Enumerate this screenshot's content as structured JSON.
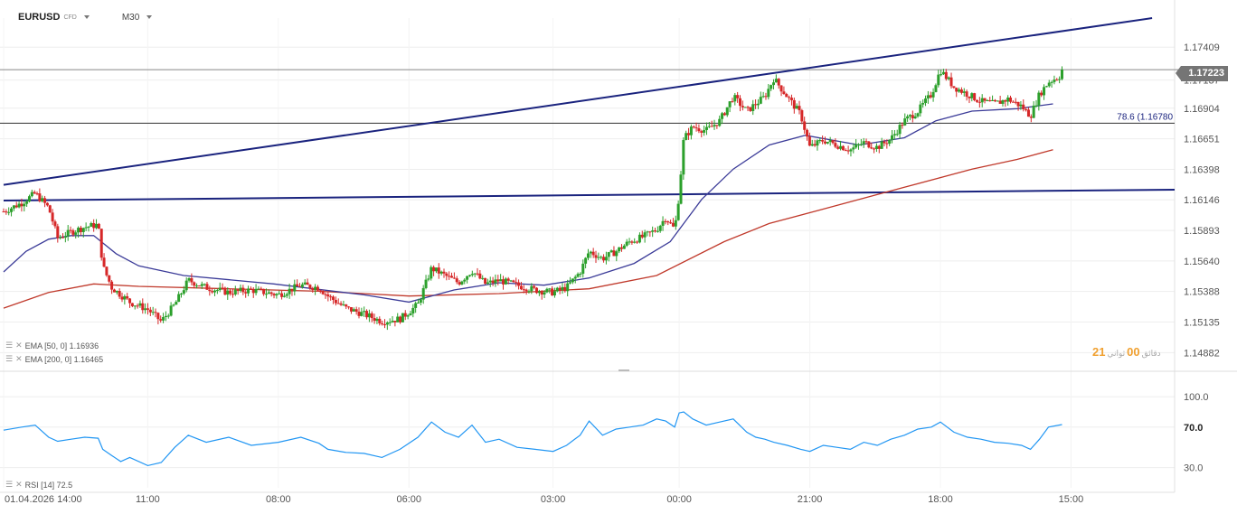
{
  "toolbar": {
    "symbol": "EURUSD",
    "instrument_type": "CFD",
    "timeframe": "M30"
  },
  "indicators": {
    "ema50": "EMA [50, 0] 1.16936",
    "ema200": "EMA [200, 0] 1.16465",
    "rsi": "RSI [14] 72.5"
  },
  "price_tag": "1.17223",
  "fib_label": "78.6 (1.16780",
  "countdown": {
    "left": "21",
    "right": "00",
    "mid_label": "دقائق",
    "end_label": "ثواني"
  },
  "colors": {
    "up": "#2ca02c",
    "down": "#d62728",
    "ema50": "#3b3b98",
    "ema200": "#c0392b",
    "trendline": "#1a237e",
    "rsi": "#2196f3",
    "grid": "#eeeeee",
    "accent": "#f0a030"
  },
  "chart_data": {
    "type": "candlestick",
    "symbol": "EURUSD",
    "timeframe": "M30",
    "price_axis": {
      "range": [
        1.1475,
        1.1765
      ],
      "ticks": [
        "1.17409",
        "1.17137",
        "1.16904",
        "1.16651",
        "1.16398",
        "1.16146",
        "1.15893",
        "1.15640",
        "1.15388",
        "1.15135",
        "1.14882"
      ]
    },
    "time_axis": {
      "range": [
        0,
        260
      ],
      "ticks": [
        {
          "x": 0,
          "label": "01.04.2026 14:00"
        },
        {
          "x": 32,
          "label": "11:00"
        },
        {
          "x": 61,
          "label": "08:00"
        },
        {
          "x": 90,
          "label": "06:00"
        },
        {
          "x": 122,
          "label": "03:00"
        },
        {
          "x": 150,
          "label": "00:00"
        },
        {
          "x": 179,
          "label": "21:00"
        },
        {
          "x": 208,
          "label": "18:00"
        },
        {
          "x": 237,
          "label": "15:00"
        }
      ]
    },
    "close_path": [
      [
        0,
        1.1605
      ],
      [
        4,
        1.1612
      ],
      [
        7,
        1.162
      ],
      [
        10,
        1.1608
      ],
      [
        12,
        1.1583
      ],
      [
        15,
        1.1588
      ],
      [
        18,
        1.1592
      ],
      [
        21,
        1.1594
      ],
      [
        22,
        1.156
      ],
      [
        24,
        1.1542
      ],
      [
        28,
        1.153
      ],
      [
        32,
        1.1524
      ],
      [
        35,
        1.1514
      ],
      [
        38,
        1.1528
      ],
      [
        41,
        1.1548
      ],
      [
        45,
        1.1542
      ],
      [
        50,
        1.1538
      ],
      [
        55,
        1.154
      ],
      [
        61,
        1.1536
      ],
      [
        66,
        1.1544
      ],
      [
        70,
        1.1542
      ],
      [
        72,
        1.1535
      ],
      [
        76,
        1.1525
      ],
      [
        80,
        1.152
      ],
      [
        84,
        1.1514
      ],
      [
        88,
        1.1516
      ],
      [
        92,
        1.1528
      ],
      [
        95,
        1.1558
      ],
      [
        98,
        1.1552
      ],
      [
        101,
        1.1546
      ],
      [
        104,
        1.1556
      ],
      [
        107,
        1.1545
      ],
      [
        110,
        1.1548
      ],
      [
        114,
        1.1544
      ],
      [
        118,
        1.154
      ],
      [
        122,
        1.1538
      ],
      [
        125,
        1.1542
      ],
      [
        128,
        1.1555
      ],
      [
        130,
        1.1572
      ],
      [
        133,
        1.1566
      ],
      [
        136,
        1.1572
      ],
      [
        139,
        1.158
      ],
      [
        142,
        1.1584
      ],
      [
        145,
        1.159
      ],
      [
        147,
        1.16
      ],
      [
        149,
        1.159
      ],
      [
        150,
        1.162
      ],
      [
        151,
        1.1665
      ],
      [
        153,
        1.1675
      ],
      [
        156,
        1.1672
      ],
      [
        159,
        1.168
      ],
      [
        162,
        1.17
      ],
      [
        165,
        1.1688
      ],
      [
        167,
        1.1694
      ],
      [
        169,
        1.17
      ],
      [
        171,
        1.1715
      ],
      [
        174,
        1.17
      ],
      [
        177,
        1.1685
      ],
      [
        179,
        1.1658
      ],
      [
        182,
        1.1664
      ],
      [
        185,
        1.166
      ],
      [
        188,
        1.1656
      ],
      [
        191,
        1.1662
      ],
      [
        194,
        1.1658
      ],
      [
        197,
        1.1665
      ],
      [
        200,
        1.168
      ],
      [
        203,
        1.1688
      ],
      [
        206,
        1.1702
      ],
      [
        208,
        1.1722
      ],
      [
        211,
        1.1708
      ],
      [
        214,
        1.1702
      ],
      [
        217,
        1.1696
      ],
      [
        220,
        1.1694
      ],
      [
        223,
        1.1698
      ],
      [
        226,
        1.1692
      ],
      [
        228,
        1.1684
      ],
      [
        230,
        1.1702
      ],
      [
        232,
        1.1712
      ],
      [
        235,
        1.1718
      ]
    ],
    "ema50": [
      [
        0,
        1.1555
      ],
      [
        5,
        1.1572
      ],
      [
        10,
        1.1582
      ],
      [
        15,
        1.1585
      ],
      [
        20,
        1.1585
      ],
      [
        25,
        1.157
      ],
      [
        30,
        1.156
      ],
      [
        40,
        1.1552
      ],
      [
        60,
        1.1545
      ],
      [
        80,
        1.1536
      ],
      [
        90,
        1.153
      ],
      [
        100,
        1.154
      ],
      [
        110,
        1.1546
      ],
      [
        120,
        1.1544
      ],
      [
        130,
        1.155
      ],
      [
        140,
        1.1562
      ],
      [
        148,
        1.158
      ],
      [
        155,
        1.1615
      ],
      [
        162,
        1.164
      ],
      [
        170,
        1.166
      ],
      [
        178,
        1.1668
      ],
      [
        190,
        1.166
      ],
      [
        200,
        1.1666
      ],
      [
        207,
        1.168
      ],
      [
        215,
        1.1688
      ],
      [
        225,
        1.169
      ],
      [
        233,
        1.1694
      ]
    ],
    "ema200": [
      [
        0,
        1.1525
      ],
      [
        10,
        1.1538
      ],
      [
        20,
        1.1545
      ],
      [
        30,
        1.1543
      ],
      [
        50,
        1.1541
      ],
      [
        70,
        1.1539
      ],
      [
        90,
        1.1535
      ],
      [
        110,
        1.1537
      ],
      [
        130,
        1.1541
      ],
      [
        145,
        1.1552
      ],
      [
        160,
        1.158
      ],
      [
        170,
        1.1595
      ],
      [
        180,
        1.1605
      ],
      [
        200,
        1.1625
      ],
      [
        215,
        1.164
      ],
      [
        225,
        1.1648
      ],
      [
        233,
        1.1656
      ]
    ],
    "trend_upper": [
      [
        0,
        1.1627
      ],
      [
        255,
        1.1765
      ]
    ],
    "support_line": [
      [
        0,
        1.1614
      ],
      [
        260,
        1.1623
      ]
    ],
    "fib_level": {
      "value": 1.1678,
      "label": "78.6 (1.16780"
    },
    "last_price": 1.17223,
    "rsi": {
      "range": [
        10,
        110
      ],
      "ticks": [
        "100.0",
        "70.0",
        "30.0"
      ],
      "path": [
        [
          0,
          67
        ],
        [
          4,
          70
        ],
        [
          7,
          72
        ],
        [
          10,
          60
        ],
        [
          12,
          56
        ],
        [
          15,
          58
        ],
        [
          18,
          60
        ],
        [
          21,
          59
        ],
        [
          22,
          48
        ],
        [
          24,
          42
        ],
        [
          26,
          36
        ],
        [
          28,
          40
        ],
        [
          32,
          32
        ],
        [
          35,
          35
        ],
        [
          38,
          50
        ],
        [
          41,
          62
        ],
        [
          45,
          55
        ],
        [
          50,
          60
        ],
        [
          55,
          52
        ],
        [
          61,
          55
        ],
        [
          66,
          60
        ],
        [
          70,
          54
        ],
        [
          72,
          48
        ],
        [
          76,
          45
        ],
        [
          80,
          44
        ],
        [
          84,
          40
        ],
        [
          88,
          48
        ],
        [
          92,
          60
        ],
        [
          95,
          75
        ],
        [
          98,
          65
        ],
        [
          101,
          60
        ],
        [
          104,
          72
        ],
        [
          107,
          55
        ],
        [
          110,
          58
        ],
        [
          114,
          50
        ],
        [
          118,
          48
        ],
        [
          122,
          46
        ],
        [
          125,
          52
        ],
        [
          128,
          62
        ],
        [
          130,
          76
        ],
        [
          133,
          62
        ],
        [
          136,
          68
        ],
        [
          139,
          70
        ],
        [
          142,
          72
        ],
        [
          145,
          78
        ],
        [
          147,
          76
        ],
        [
          149,
          70
        ],
        [
          150,
          84
        ],
        [
          151,
          85
        ],
        [
          153,
          78
        ],
        [
          156,
          72
        ],
        [
          159,
          75
        ],
        [
          162,
          78
        ],
        [
          165,
          65
        ],
        [
          167,
          60
        ],
        [
          169,
          58
        ],
        [
          171,
          55
        ],
        [
          174,
          52
        ],
        [
          177,
          48
        ],
        [
          179,
          46
        ],
        [
          182,
          52
        ],
        [
          185,
          50
        ],
        [
          188,
          48
        ],
        [
          191,
          55
        ],
        [
          194,
          52
        ],
        [
          197,
          58
        ],
        [
          200,
          62
        ],
        [
          203,
          68
        ],
        [
          206,
          70
        ],
        [
          208,
          75
        ],
        [
          211,
          65
        ],
        [
          214,
          60
        ],
        [
          217,
          58
        ],
        [
          220,
          55
        ],
        [
          223,
          54
        ],
        [
          226,
          52
        ],
        [
          228,
          48
        ],
        [
          230,
          58
        ],
        [
          232,
          70
        ],
        [
          235,
          72.5
        ]
      ]
    }
  }
}
